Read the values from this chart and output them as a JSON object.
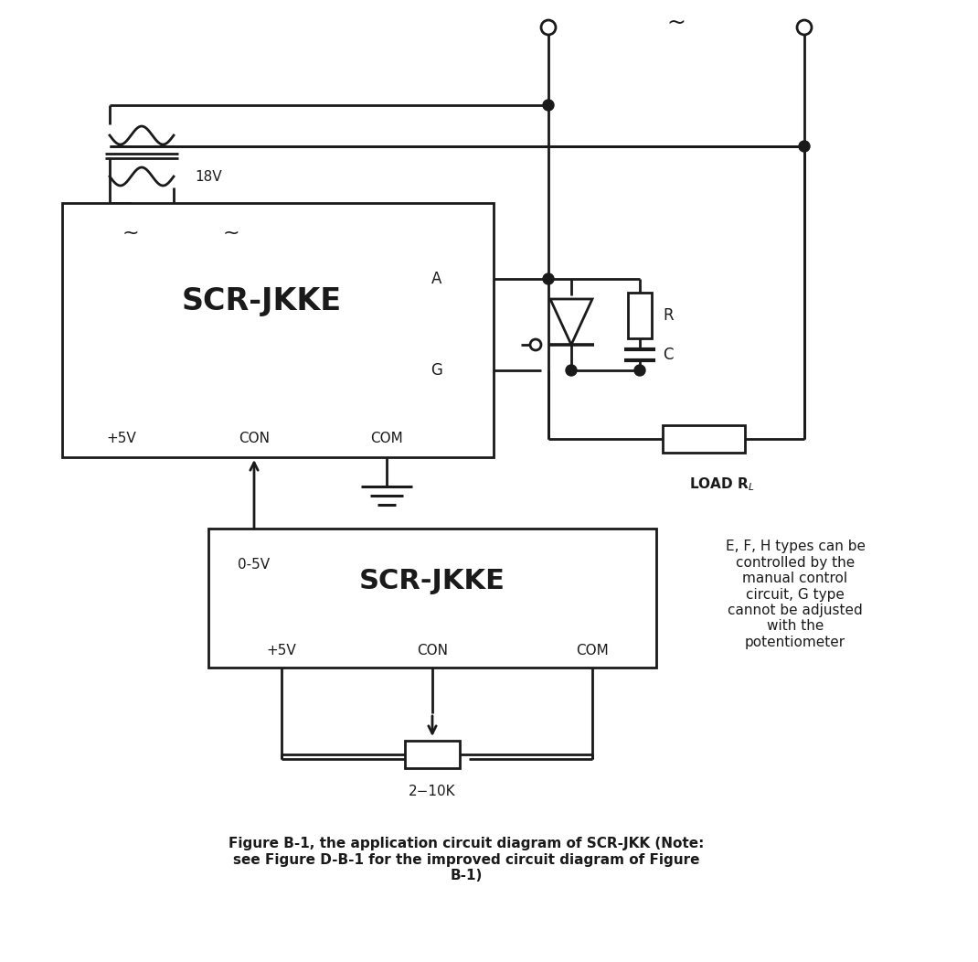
{
  "bg_color": "#ffffff",
  "line_color": "#1a1a1a",
  "line_width": 1.8,
  "title_upper": "SCR-JKKE",
  "title_lower": "SCR-JKKE",
  "label_5v": "+5V",
  "label_con": "CON",
  "label_com": "COM",
  "label_18v": "18V",
  "label_A": "A",
  "label_G": "G",
  "label_R": "R",
  "label_C": "C",
  "label_load": "LOAD R",
  "label_2_10k": "2−10K",
  "label_0_5v": "0-5V",
  "note_text": "E, F, H types can be\ncontrolled by the\nmanual control\ncircuit, G type\ncannot be adjusted\nwith the\npotentiometer",
  "caption_text": "Figure B-1, the application circuit diagram of SCR-JKK (Note:\nsee Figure D-B-1 for the improved circuit diagram of Figure\nB-1)"
}
